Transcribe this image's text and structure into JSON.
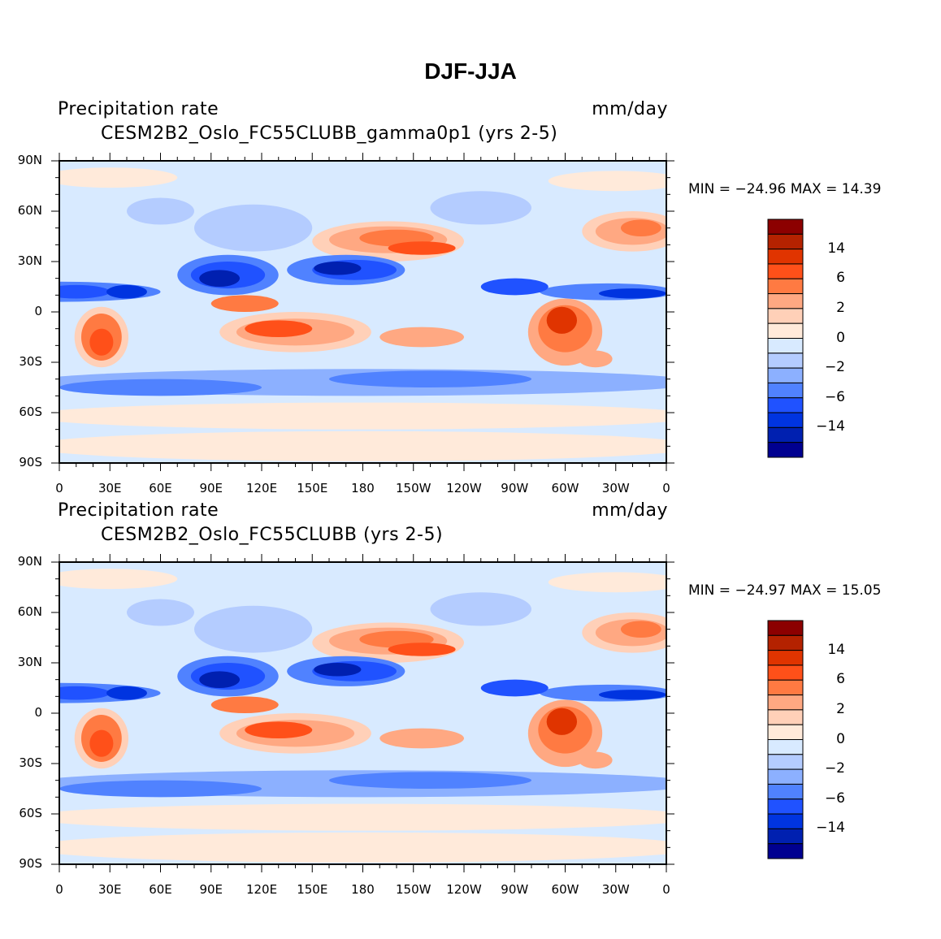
{
  "title": "DJF-JJA",
  "panels": [
    {
      "left_title": "Precipitation rate",
      "center_title": "CESM2B2_Oslo_FC55CLUBB_gamma0p1 (yrs 2-5)",
      "right_title": "mm/day",
      "min_max": "MIN = −24.96 MAX =  14.39"
    },
    {
      "left_title": "Precipitation rate",
      "center_title": "CESM2B2_Oslo_FC55CLUBB (yrs 2-5)",
      "right_title": "mm/day",
      "min_max": "MIN = −24.97 MAX =  15.05"
    }
  ],
  "x_ticks": [
    "0",
    "30E",
    "60E",
    "90E",
    "120E",
    "150E",
    "180",
    "150W",
    "120W",
    "90W",
    "60W",
    "30W",
    "0"
  ],
  "y_ticks": [
    "90N",
    "60N",
    "30N",
    "0",
    "30S",
    "60S",
    "90S"
  ],
  "colorbar": {
    "labels": [
      "14",
      "6",
      "2",
      "0",
      "−2",
      "−6",
      "−14"
    ],
    "colors": [
      "#8C0000",
      "#B42200",
      "#E03400",
      "#FF5019",
      "#FF7A42",
      "#FFA882",
      "#FFD0B8",
      "#FFEADA",
      "#D8EAFF",
      "#B4CCFF",
      "#8CB0FF",
      "#5082FF",
      "#2052FF",
      "#0034E0",
      "#0020B0",
      "#000090"
    ]
  }
}
